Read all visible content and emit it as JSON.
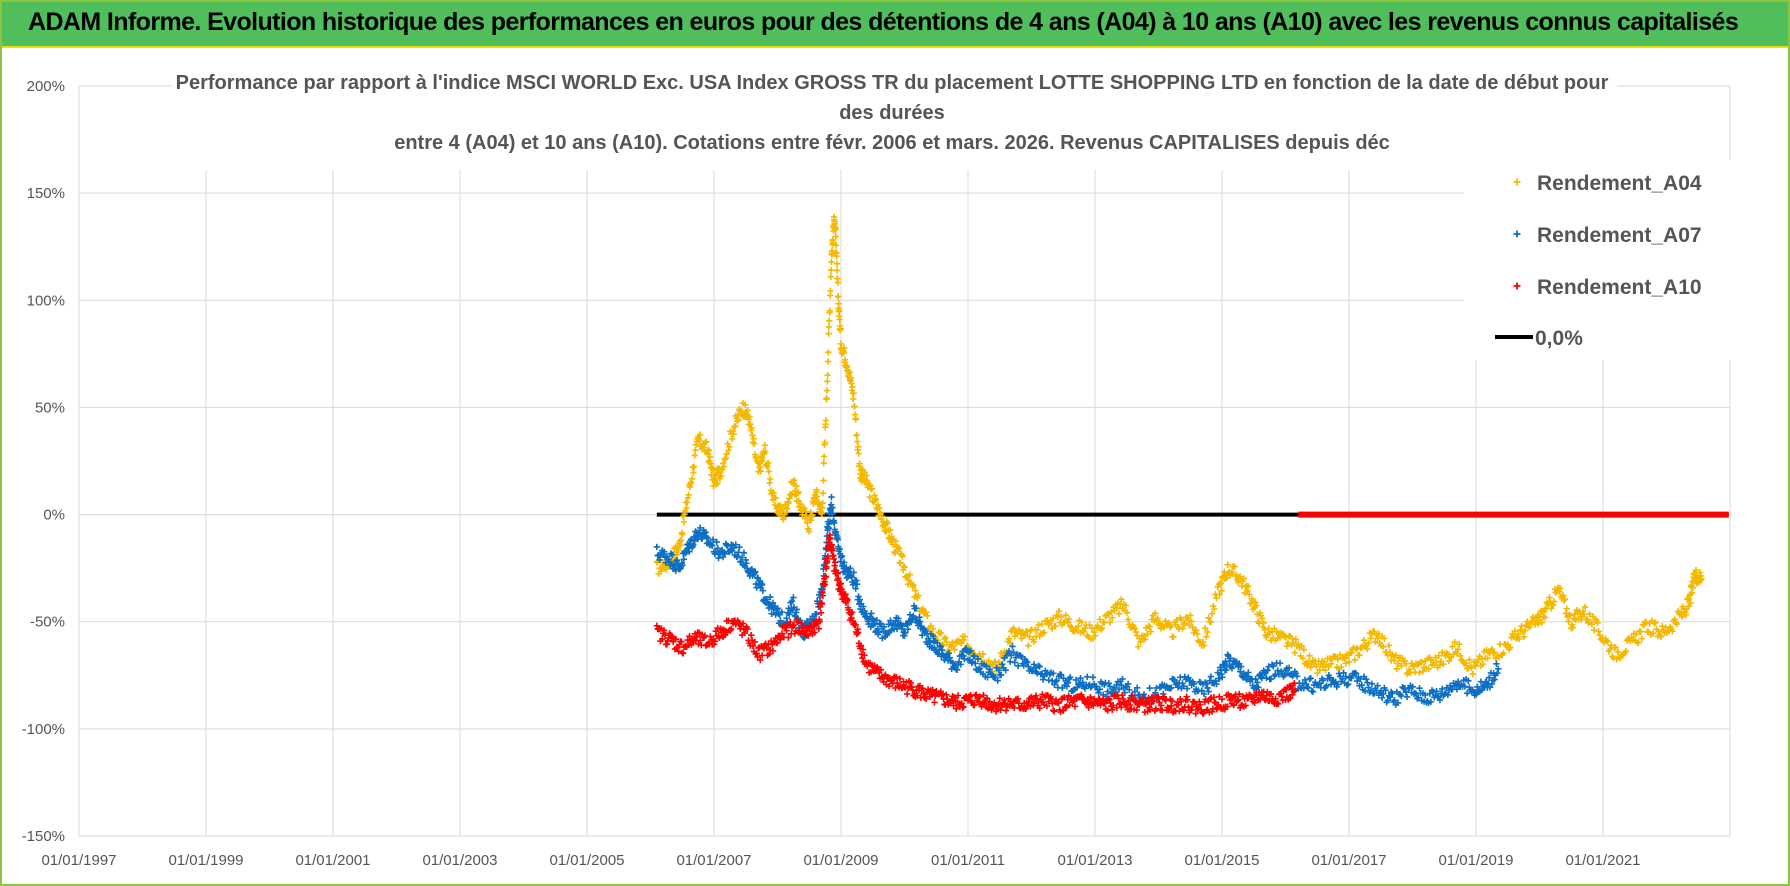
{
  "header": {
    "title": "ADAM Informe. Evolution historique des performances en euros pour des détentions de 4 ans (A04) à 10 ans (A10) avec les revenus connus capitalisés"
  },
  "colors": {
    "header_bg": "#4fbe5b",
    "a04": "#f5b800",
    "a07": "#0d6fc4",
    "a10": "#ff0000",
    "zero": "#000000",
    "grid": "#d9d9d9"
  },
  "chart_data": {
    "type": "scatter",
    "title_lines": [
      "Performance par rapport à l'indice MSCI WORLD Exc. USA Index GROSS TR  du placement LOTTE SHOPPING LTD en fonction de la date de début pour",
      "des durées",
      "entre 4 (A04) et 10 ans (A10).  Cotations entre févr. 2006 et mars. 2026. Revenus CAPITALISES depuis déc"
    ],
    "xlabel": "",
    "ylabel": "",
    "xlim": [
      1997.0,
      2023.0
    ],
    "ylim": [
      -150,
      200
    ],
    "y_ticks": [
      200,
      150,
      100,
      50,
      0,
      -50,
      -100,
      -150
    ],
    "y_tick_labels": [
      "200%",
      "150%",
      "100%",
      "50%",
      "0%",
      "-50%",
      "-100%",
      "-150%"
    ],
    "x_ticks": [
      1997,
      1999,
      2001,
      2003,
      2005,
      2007,
      2009,
      2011,
      2013,
      2015,
      2017,
      2019,
      2021
    ],
    "x_tick_labels": [
      "01/01/1997",
      "01/01/1999",
      "01/01/2001",
      "01/01/2003",
      "01/01/2005",
      "01/01/2007",
      "01/01/2009",
      "01/01/2011",
      "01/01/2013",
      "01/01/2015",
      "01/01/2017",
      "01/01/2019",
      "01/01/2021"
    ],
    "legend_position": "top-right",
    "series": [
      {
        "name": "Rendement_A04",
        "marker": "+",
        "color": "#f5b800",
        "points": [
          [
            2006.1,
            -25
          ],
          [
            2006.3,
            -22
          ],
          [
            2006.45,
            -15
          ],
          [
            2006.6,
            10
          ],
          [
            2006.75,
            35
          ],
          [
            2006.9,
            30
          ],
          [
            2007.0,
            15
          ],
          [
            2007.1,
            20
          ],
          [
            2007.3,
            40
          ],
          [
            2007.45,
            50
          ],
          [
            2007.55,
            45
          ],
          [
            2007.7,
            20
          ],
          [
            2007.8,
            30
          ],
          [
            2007.95,
            5
          ],
          [
            2008.1,
            0
          ],
          [
            2008.25,
            15
          ],
          [
            2008.35,
            5
          ],
          [
            2008.5,
            -5
          ],
          [
            2008.6,
            10
          ],
          [
            2008.7,
            0
          ],
          [
            2008.78,
            60
          ],
          [
            2008.85,
            120
          ],
          [
            2008.9,
            140
          ],
          [
            2008.95,
            105
          ],
          [
            2009.0,
            80
          ],
          [
            2009.1,
            70
          ],
          [
            2009.2,
            55
          ],
          [
            2009.3,
            20
          ],
          [
            2009.4,
            15
          ],
          [
            2009.55,
            5
          ],
          [
            2009.7,
            -5
          ],
          [
            2009.85,
            -15
          ],
          [
            2010.0,
            -25
          ],
          [
            2010.2,
            -40
          ],
          [
            2010.45,
            -55
          ],
          [
            2010.7,
            -62
          ],
          [
            2010.95,
            -60
          ],
          [
            2011.2,
            -65
          ],
          [
            2011.45,
            -72
          ],
          [
            2011.7,
            -55
          ],
          [
            2011.95,
            -58
          ],
          [
            2012.2,
            -52
          ],
          [
            2012.45,
            -48
          ],
          [
            2012.7,
            -52
          ],
          [
            2012.95,
            -55
          ],
          [
            2013.2,
            -48
          ],
          [
            2013.45,
            -42
          ],
          [
            2013.7,
            -60
          ],
          [
            2013.95,
            -48
          ],
          [
            2014.2,
            -55
          ],
          [
            2014.45,
            -48
          ],
          [
            2014.7,
            -60
          ],
          [
            2014.95,
            -35
          ],
          [
            2015.1,
            -25
          ],
          [
            2015.3,
            -30
          ],
          [
            2015.5,
            -42
          ],
          [
            2015.7,
            -55
          ],
          [
            2015.95,
            -58
          ],
          [
            2016.2,
            -62
          ],
          [
            2016.45,
            -72
          ],
          [
            2016.7,
            -70
          ],
          [
            2016.95,
            -68
          ],
          [
            2017.2,
            -62
          ],
          [
            2017.45,
            -55
          ],
          [
            2017.7,
            -68
          ],
          [
            2017.95,
            -72
          ],
          [
            2018.2,
            -70
          ],
          [
            2018.45,
            -68
          ],
          [
            2018.7,
            -62
          ],
          [
            2018.95,
            -72
          ],
          [
            2019.2,
            -65
          ],
          [
            2019.45,
            -62
          ],
          [
            2019.7,
            -55
          ],
          [
            2019.95,
            -50
          ],
          [
            2020.1,
            -45
          ],
          [
            2020.3,
            -35
          ],
          [
            2020.5,
            -50
          ],
          [
            2020.7,
            -45
          ],
          [
            2020.95,
            -55
          ],
          [
            2021.2,
            -65
          ],
          [
            2021.45,
            -60
          ],
          [
            2021.7,
            -52
          ],
          [
            2021.95,
            -55
          ],
          [
            2022.2,
            -48
          ],
          [
            2022.35,
            -42
          ],
          [
            2022.45,
            -28
          ],
          [
            2022.55,
            -30
          ]
        ]
      },
      {
        "name": "Rendement_A07",
        "marker": "+",
        "color": "#0d6fc4",
        "points": [
          [
            2006.1,
            -18
          ],
          [
            2006.3,
            -20
          ],
          [
            2006.45,
            -25
          ],
          [
            2006.6,
            -15
          ],
          [
            2006.75,
            -8
          ],
          [
            2006.9,
            -12
          ],
          [
            2007.1,
            -18
          ],
          [
            2007.3,
            -15
          ],
          [
            2007.5,
            -22
          ],
          [
            2007.65,
            -30
          ],
          [
            2007.8,
            -38
          ],
          [
            2007.95,
            -45
          ],
          [
            2008.1,
            -50
          ],
          [
            2008.25,
            -42
          ],
          [
            2008.4,
            -55
          ],
          [
            2008.55,
            -50
          ],
          [
            2008.7,
            -35
          ],
          [
            2008.78,
            -10
          ],
          [
            2008.85,
            5
          ],
          [
            2008.95,
            -15
          ],
          [
            2009.05,
            -25
          ],
          [
            2009.2,
            -30
          ],
          [
            2009.35,
            -45
          ],
          [
            2009.5,
            -50
          ],
          [
            2009.65,
            -55
          ],
          [
            2009.85,
            -50
          ],
          [
            2010.0,
            -55
          ],
          [
            2010.15,
            -45
          ],
          [
            2010.3,
            -55
          ],
          [
            2010.45,
            -60
          ],
          [
            2010.6,
            -65
          ],
          [
            2010.8,
            -70
          ],
          [
            2011.0,
            -65
          ],
          [
            2011.2,
            -72
          ],
          [
            2011.45,
            -75
          ],
          [
            2011.7,
            -65
          ],
          [
            2011.95,
            -72
          ],
          [
            2012.2,
            -75
          ],
          [
            2012.45,
            -78
          ],
          [
            2012.7,
            -80
          ],
          [
            2012.95,
            -78
          ],
          [
            2013.2,
            -82
          ],
          [
            2013.45,
            -80
          ],
          [
            2013.7,
            -85
          ],
          [
            2013.95,
            -84
          ],
          [
            2014.2,
            -80
          ],
          [
            2014.45,
            -78
          ],
          [
            2014.7,
            -82
          ],
          [
            2014.95,
            -75
          ],
          [
            2015.1,
            -68
          ],
          [
            2015.3,
            -72
          ],
          [
            2015.5,
            -80
          ],
          [
            2015.7,
            -74
          ],
          [
            2015.95,
            -72
          ],
          [
            2016.2,
            -78
          ],
          [
            2016.45,
            -80
          ],
          [
            2016.7,
            -78
          ],
          [
            2016.95,
            -76
          ],
          [
            2017.2,
            -78
          ],
          [
            2017.45,
            -82
          ],
          [
            2017.7,
            -86
          ],
          [
            2017.95,
            -82
          ],
          [
            2018.2,
            -85
          ],
          [
            2018.45,
            -84
          ],
          [
            2018.7,
            -78
          ],
          [
            2018.95,
            -82
          ],
          [
            2019.15,
            -80
          ],
          [
            2019.35,
            -72
          ]
        ]
      },
      {
        "name": "Rendement_A10",
        "marker": "+",
        "color": "#ff0000",
        "points": [
          [
            2006.1,
            -55
          ],
          [
            2006.3,
            -58
          ],
          [
            2006.5,
            -62
          ],
          [
            2006.7,
            -58
          ],
          [
            2006.9,
            -60
          ],
          [
            2007.1,
            -55
          ],
          [
            2007.3,
            -50
          ],
          [
            2007.5,
            -55
          ],
          [
            2007.7,
            -65
          ],
          [
            2007.9,
            -62
          ],
          [
            2008.1,
            -55
          ],
          [
            2008.3,
            -52
          ],
          [
            2008.5,
            -55
          ],
          [
            2008.65,
            -50
          ],
          [
            2008.75,
            -30
          ],
          [
            2008.82,
            -10
          ],
          [
            2008.9,
            -25
          ],
          [
            2009.0,
            -35
          ],
          [
            2009.1,
            -42
          ],
          [
            2009.25,
            -55
          ],
          [
            2009.4,
            -70
          ],
          [
            2009.6,
            -75
          ],
          [
            2009.8,
            -78
          ],
          [
            2010.0,
            -80
          ],
          [
            2010.2,
            -82
          ],
          [
            2010.4,
            -85
          ],
          [
            2010.6,
            -86
          ],
          [
            2010.8,
            -88
          ],
          [
            2011.0,
            -87
          ],
          [
            2011.2,
            -86
          ],
          [
            2011.4,
            -89
          ],
          [
            2011.6,
            -88
          ],
          [
            2011.8,
            -89
          ],
          [
            2012.0,
            -88
          ],
          [
            2012.2,
            -87
          ],
          [
            2012.4,
            -89
          ],
          [
            2012.6,
            -88
          ],
          [
            2012.8,
            -87
          ],
          [
            2013.0,
            -88
          ],
          [
            2013.2,
            -89
          ],
          [
            2013.4,
            -87
          ],
          [
            2013.6,
            -88
          ],
          [
            2013.8,
            -89
          ],
          [
            2014.0,
            -88
          ],
          [
            2014.2,
            -89
          ],
          [
            2014.4,
            -88
          ],
          [
            2014.6,
            -90
          ],
          [
            2014.8,
            -89
          ],
          [
            2015.0,
            -88
          ],
          [
            2015.2,
            -86
          ],
          [
            2015.4,
            -88
          ],
          [
            2015.6,
            -84
          ],
          [
            2015.8,
            -86
          ],
          [
            2016.0,
            -84
          ],
          [
            2016.15,
            -82
          ]
        ]
      }
    ],
    "zero_line": {
      "name": "0,0%",
      "value": 0,
      "x_range": [
        2006.1,
        2022.98
      ],
      "color": "#000000"
    },
    "flat_series": {
      "name": "Rendement_A10",
      "value": 0,
      "x_range": [
        2016.2,
        2022.98
      ],
      "color": "#ff0000"
    }
  }
}
